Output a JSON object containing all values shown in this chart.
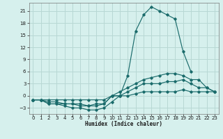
{
  "title": "",
  "xlabel": "Humidex (Indice chaleur)",
  "ylabel": "",
  "bg_color": "#d6f0ed",
  "grid_color": "#b8d8d4",
  "line_color": "#1a6b6b",
  "xlim": [
    -0.5,
    23.5
  ],
  "ylim": [
    -4.5,
    23
  ],
  "xticks": [
    0,
    1,
    2,
    3,
    4,
    5,
    6,
    7,
    8,
    9,
    10,
    11,
    12,
    13,
    14,
    15,
    16,
    17,
    18,
    19,
    20,
    21,
    22,
    23
  ],
  "yticks": [
    -3,
    0,
    3,
    6,
    9,
    12,
    15,
    18,
    21
  ],
  "series": [
    {
      "x": [
        0,
        1,
        2,
        3,
        4,
        5,
        6,
        7,
        8,
        9,
        10,
        11,
        12,
        13,
        14,
        15,
        16,
        17,
        18,
        19,
        20
      ],
      "y": [
        -1,
        -1,
        -2,
        -2,
        -2.5,
        -3,
        -3,
        -3.5,
        -3.5,
        -3,
        -1.5,
        0,
        5,
        16,
        20,
        22,
        21,
        20,
        19,
        11,
        6
      ]
    },
    {
      "x": [
        0,
        1,
        2,
        3,
        4,
        5,
        6,
        7,
        8,
        9,
        10,
        11,
        12,
        13,
        14,
        15,
        16,
        17,
        18,
        19,
        20,
        21,
        22,
        23
      ],
      "y": [
        -1,
        -1,
        -2,
        -2,
        -2,
        -2,
        -2.5,
        -2.5,
        -2.5,
        -2,
        0,
        1,
        2,
        3,
        4,
        4.5,
        5,
        5.5,
        5.5,
        5,
        4,
        4,
        2,
        1
      ]
    },
    {
      "x": [
        0,
        1,
        2,
        3,
        4,
        5,
        6,
        7,
        8,
        9,
        10,
        11,
        12,
        13,
        14,
        15,
        16,
        17,
        18,
        19,
        20,
        21,
        22,
        23
      ],
      "y": [
        -1,
        -1,
        -1.5,
        -1.5,
        -2,
        -2,
        -2,
        -2.5,
        -2,
        -2,
        0,
        0,
        1,
        2,
        3,
        3,
        3,
        3.5,
        3.5,
        4,
        3,
        2,
        2,
        1
      ]
    },
    {
      "x": [
        0,
        1,
        2,
        3,
        4,
        5,
        6,
        7,
        8,
        9,
        10,
        11,
        12,
        13,
        14,
        15,
        16,
        17,
        18,
        19,
        20,
        21,
        22,
        23
      ],
      "y": [
        -1,
        -1,
        -1,
        -1,
        -1,
        -1,
        -1,
        -1,
        -1,
        -1,
        0,
        0,
        0,
        0.5,
        1,
        1,
        1,
        1,
        1,
        1.5,
        1,
        1,
        1,
        1
      ]
    }
  ]
}
